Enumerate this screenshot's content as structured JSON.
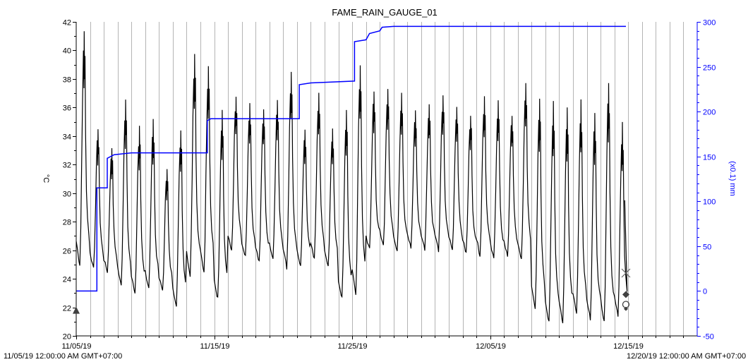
{
  "chart_data": {
    "type": "line",
    "title": "FAME_RAIN_GAUGE_01",
    "ylabel": "°C",
    "y2label": "(x0.1) mm",
    "xlim": [
      "11/05/19",
      "12/20/19"
    ],
    "ylim": [
      20,
      42
    ],
    "y2lim": [
      -50,
      300
    ],
    "x_ticks": [
      "11/05/19",
      "11/15/19",
      "11/25/19",
      "12/05/19",
      "12/15/19"
    ],
    "y_ticks": [
      "20",
      "22",
      "24",
      "26",
      "28",
      "30",
      "32",
      "34",
      "36",
      "38",
      "40",
      "42"
    ],
    "y2_ticks": [
      "-50",
      "0",
      "50",
      "100",
      "150",
      "200",
      "250",
      "300"
    ],
    "x_range_start_label": "11/05/19 12:00:00 AM GMT+07:00",
    "x_range_end_label": "12/20/19 12:00:00 AM GMT+07:00",
    "grid": "vertical lines at each day",
    "colors": {
      "temperature": "#000000",
      "rainfall": "#0000ff",
      "axis_right": "#0000ff",
      "grid": "#b4b4b4"
    },
    "series": [
      {
        "axis": "left",
        "color": "#000000",
        "daily": [
          {
            "date": "11/05/19",
            "min": 25.0,
            "max": 41.4
          },
          {
            "date": "11/06/19",
            "min": 24.8,
            "max": 34.5
          },
          {
            "date": "11/07/19",
            "min": 24.5,
            "max": 33.2
          },
          {
            "date": "11/08/19",
            "min": 23.5,
            "max": 36.6
          },
          {
            "date": "11/09/19",
            "min": 23.0,
            "max": 34.6
          },
          {
            "date": "11/10/19",
            "min": 23.4,
            "max": 35.0
          },
          {
            "date": "11/11/19",
            "min": 23.2,
            "max": 31.8
          },
          {
            "date": "11/12/19",
            "min": 22.2,
            "max": 34.6
          },
          {
            "date": "11/13/19",
            "min": 24.3,
            "max": 39.8
          },
          {
            "date": "11/14/19",
            "min": 24.5,
            "max": 39.0
          },
          {
            "date": "11/15/19",
            "min": 22.6,
            "max": 35.6
          },
          {
            "date": "11/16/19",
            "min": 25.9,
            "max": 36.8
          },
          {
            "date": "11/17/19",
            "min": 25.5,
            "max": 36.3
          },
          {
            "date": "11/18/19",
            "min": 25.2,
            "max": 36.0
          },
          {
            "date": "11/19/19",
            "min": 25.4,
            "max": 36.5
          },
          {
            "date": "11/20/19",
            "min": 24.8,
            "max": 38.5
          },
          {
            "date": "11/21/19",
            "min": 25.0,
            "max": 34.5
          },
          {
            "date": "11/22/19",
            "min": 25.4,
            "max": 37.0
          },
          {
            "date": "11/23/19",
            "min": 25.0,
            "max": 34.4
          },
          {
            "date": "11/24/19",
            "min": 22.6,
            "max": 36.0
          },
          {
            "date": "11/25/19",
            "min": 23.0,
            "max": 39.2
          },
          {
            "date": "11/26/19",
            "min": 26.0,
            "max": 37.2
          },
          {
            "date": "11/27/19",
            "min": 26.3,
            "max": 37.4
          },
          {
            "date": "11/28/19",
            "min": 26.0,
            "max": 36.9
          },
          {
            "date": "11/29/19",
            "min": 26.2,
            "max": 35.8
          },
          {
            "date": "11/30/19",
            "min": 26.1,
            "max": 36.3
          },
          {
            "date": "12/01/19",
            "min": 26.0,
            "max": 36.9
          },
          {
            "date": "12/02/19",
            "min": 26.0,
            "max": 36.2
          },
          {
            "date": "12/03/19",
            "min": 25.8,
            "max": 35.6
          },
          {
            "date": "12/04/19",
            "min": 25.7,
            "max": 36.8
          },
          {
            "date": "12/05/19",
            "min": 25.4,
            "max": 36.4
          },
          {
            "date": "12/06/19",
            "min": 25.6,
            "max": 35.6
          },
          {
            "date": "12/07/19",
            "min": 25.3,
            "max": 37.6
          },
          {
            "date": "12/08/19",
            "min": 22.0,
            "max": 36.8
          },
          {
            "date": "12/09/19",
            "min": 21.0,
            "max": 36.2
          },
          {
            "date": "12/10/19",
            "min": 21.0,
            "max": 35.8
          },
          {
            "date": "12/11/19",
            "min": 21.5,
            "max": 36.3
          },
          {
            "date": "12/12/19",
            "min": 21.2,
            "max": 35.6
          },
          {
            "date": "12/13/19",
            "min": 21.0,
            "max": 37.7
          },
          {
            "date": "12/14/19",
            "min": 21.5,
            "max": 34.8
          }
        ],
        "last": {
          "date": "12/14/19 18:00",
          "value": 29.5
        }
      },
      {
        "axis": "right",
        "color": "#0000ff",
        "steps": [
          {
            "x": "11/05/19",
            "y": 0
          },
          {
            "x": "11/06/19 12:00",
            "y": 0
          },
          {
            "x": "11/06/19 12:00",
            "y": 115
          },
          {
            "x": "11/07/19 06:00",
            "y": 115
          },
          {
            "x": "11/07/19 06:00",
            "y": 148
          },
          {
            "x": "11/07/19 18:00",
            "y": 152
          },
          {
            "x": "11/09/19",
            "y": 154
          },
          {
            "x": "11/14/19 12:00",
            "y": 154
          },
          {
            "x": "11/14/19 12:00",
            "y": 190
          },
          {
            "x": "11/14/19 18:00",
            "y": 192
          },
          {
            "x": "11/21/19 04:00",
            "y": 192
          },
          {
            "x": "11/21/19 04:00",
            "y": 230
          },
          {
            "x": "11/22/19",
            "y": 232
          },
          {
            "x": "11/25/19 04:00",
            "y": 234
          },
          {
            "x": "11/25/19 04:00",
            "y": 278
          },
          {
            "x": "11/26/19",
            "y": 280
          },
          {
            "x": "11/26/19 06:00",
            "y": 287
          },
          {
            "x": "11/27/19",
            "y": 290
          },
          {
            "x": "11/27/19 04:00",
            "y": 294
          },
          {
            "x": "11/28/19",
            "y": 295
          },
          {
            "x": "12/14/19 20:00",
            "y": 295
          }
        ]
      }
    ],
    "markers": [
      {
        "shape": "triangle",
        "x": "11/05/19",
        "axis": "left",
        "y": 21.8,
        "color": "#404040"
      },
      {
        "shape": "cross",
        "x": "12/14/19 20:00",
        "axis": "left",
        "y": 24.4,
        "color": "#606060"
      },
      {
        "shape": "diamond",
        "x": "12/14/19 20:00",
        "axis": "left",
        "y": 22.9,
        "color": "#404040"
      },
      {
        "shape": "circle",
        "x": "12/14/19 20:00",
        "axis": "left",
        "y": 22.2,
        "color": "#404040"
      },
      {
        "shape": "diamond-small",
        "x": "12/14/19 20:00",
        "axis": "left",
        "y": 21.9,
        "color": "#404040"
      }
    ]
  }
}
